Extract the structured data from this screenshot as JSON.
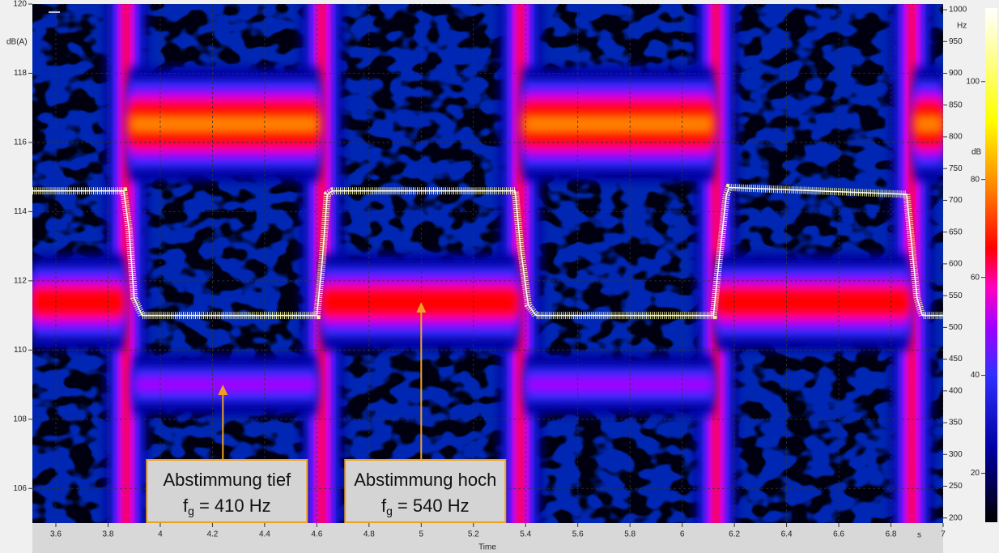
{
  "chart_data": {
    "type": "line",
    "ylabel": "dB(A)",
    "y2label": "Hz",
    "xlabel": "Time",
    "x_unit": "s",
    "xlim": [
      3.51,
      7.0
    ],
    "xticks": [
      3.6,
      3.8,
      4,
      4.2,
      4.4,
      4.6,
      4.8,
      5,
      5.2,
      5.4,
      5.6,
      5.8,
      6,
      6.2,
      6.4,
      6.6,
      6.8,
      7
    ],
    "ylim": [
      105,
      120
    ],
    "yticks": [
      106,
      108,
      110,
      112,
      114,
      116,
      118,
      120
    ],
    "y2lim": [
      192,
      1009
    ],
    "y2ticks": [
      200,
      250,
      300,
      350,
      400,
      450,
      500,
      550,
      600,
      650,
      700,
      750,
      800,
      850,
      900,
      950,
      1000
    ],
    "grid": true,
    "series": [
      {
        "color": "#ffff99",
        "x": [
          3.51,
          3.86,
          3.88,
          3.9,
          3.93,
          4.6,
          4.62,
          4.64,
          4.66,
          5.36,
          5.38,
          5.41,
          5.44,
          6.12,
          6.14,
          6.17,
          6.18,
          6.86,
          6.88,
          6.9,
          6.92,
          7.0
        ],
        "values": [
          114.6,
          114.6,
          113.5,
          111.5,
          111.0,
          111.0,
          112.5,
          114.5,
          114.6,
          114.6,
          113.0,
          111.3,
          111.0,
          111.0,
          112.5,
          114.5,
          114.7,
          114.5,
          113.0,
          111.5,
          111.0,
          111.0
        ]
      }
    ],
    "spectrogram": {
      "bands": [
        {
          "x": [
            3.51,
            3.86
          ],
          "freq": 540,
          "level": 75
        },
        {
          "x": [
            4.62,
            5.37
          ],
          "freq": 540,
          "level": 75
        },
        {
          "x": [
            6.13,
            6.87
          ],
          "freq": 540,
          "level": 75
        },
        {
          "x": [
            3.88,
            4.61
          ],
          "freq": 820,
          "level": 85
        },
        {
          "x": [
            5.39,
            6.12
          ],
          "freq": 820,
          "level": 85
        },
        {
          "x": [
            6.89,
            7.0
          ],
          "freq": 820,
          "level": 85
        },
        {
          "x": [
            3.9,
            4.6
          ],
          "freq": 410,
          "level": 55
        },
        {
          "x": [
            5.4,
            6.12
          ],
          "freq": 410,
          "level": 55
        }
      ],
      "transients": [
        {
          "x": 3.87,
          "level": 68
        },
        {
          "x": 4.62,
          "level": 68
        },
        {
          "x": 5.38,
          "level": 68
        },
        {
          "x": 6.13,
          "level": 68
        },
        {
          "x": 6.88,
          "level": 68
        }
      ]
    },
    "colorbar": {
      "label": "dB",
      "lim": [
        10,
        115
      ],
      "ticks": [
        20,
        40,
        60,
        80,
        100
      ],
      "colormap": [
        {
          "value": 10,
          "color": "#000000"
        },
        {
          "value": 25,
          "color": "#0000a0"
        },
        {
          "value": 40,
          "color": "#3030ff"
        },
        {
          "value": 50,
          "color": "#a000ff"
        },
        {
          "value": 58,
          "color": "#ff00c0"
        },
        {
          "value": 66,
          "color": "#ff0000"
        },
        {
          "value": 78,
          "color": "#ff8000"
        },
        {
          "value": 92,
          "color": "#ffff00"
        },
        {
          "value": 115,
          "color": "#ffffff"
        }
      ]
    },
    "annotations": [
      {
        "text": "Abstimmung tief",
        "f": "f",
        "sub": "g",
        "rest": "= 410 Hz",
        "x": 4.24,
        "freq": 410
      },
      {
        "text": "Abstimmung hoch",
        "f": "f",
        "sub": "g",
        "rest": "= 540 Hz",
        "x": 5.0,
        "freq": 540
      }
    ]
  }
}
